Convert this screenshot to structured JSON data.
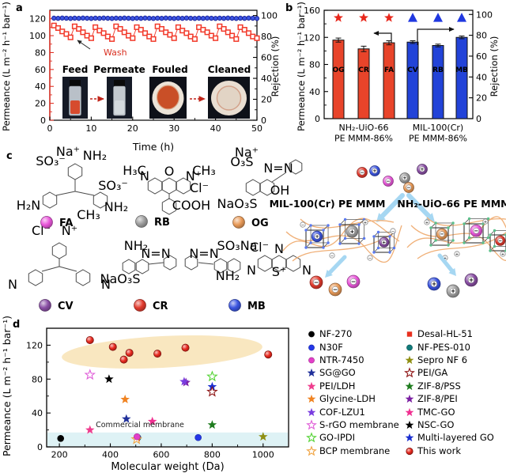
{
  "panels": {
    "a": {
      "label": "a",
      "ylabel": "Permeance (L m⁻² h⁻¹ bar⁻¹)",
      "y2label": "Rejection (%)",
      "xlabel": "Time (h)",
      "wash_label": "Wash",
      "photo_labels": [
        "Feed",
        "Permeate",
        "Fouled",
        "Cleaned"
      ]
    },
    "b": {
      "label": "b",
      "ylabel": "Permeance (L m⁻² h⁻¹ bar⁻¹)",
      "y2label": "Rejection (%)",
      "groups": [
        {
          "line1": "NH₂-UiO-66",
          "line2": "PE MMM-86%"
        },
        {
          "line1": "MIL-100(Cr)",
          "line2": "PE MMM-86%"
        }
      ]
    },
    "c": {
      "label": "c",
      "dyes": [
        {
          "id": "FA",
          "color": "#e957da",
          "charge": "−"
        },
        {
          "id": "RB",
          "color": "#9e9e9e",
          "charge": "+"
        },
        {
          "id": "OG",
          "color": "#e89a58",
          "charge": "−"
        },
        {
          "id": "CV",
          "color": "#8a4fa5",
          "charge": "+"
        },
        {
          "id": "CR",
          "color": "#e23b2e",
          "charge": "−"
        },
        {
          "id": "MB",
          "color": "#3b55e0",
          "charge": "+"
        }
      ],
      "molecules": [
        {
          "dye": "FA",
          "group_labels": [
            "Na⁺",
            "SO₃⁻",
            "NH₂",
            "SO₃⁻",
            "H₂N",
            "NH₂",
            "CH₃"
          ]
        },
        {
          "dye": "RB",
          "group_labels": [
            "H₃C",
            "N",
            "O",
            "N⁺",
            "CH₃",
            "Cl⁻",
            "COOH"
          ]
        },
        {
          "dye": "OG",
          "group_labels": [
            "Na⁺",
            "O₃S",
            "N=N",
            "OH",
            "NaO₃S"
          ]
        },
        {
          "dye": "CV",
          "group_labels": [
            "Cl⁻",
            "N⁺",
            "N",
            "N"
          ]
        },
        {
          "dye": "CR",
          "group_labels": [
            "NH₂",
            "N=N",
            "N=N",
            "NH₂",
            "NaO₃S",
            "SO₃Na"
          ]
        },
        {
          "dye": "MB",
          "group_labels": [
            "N",
            "S⁺",
            "N",
            "N",
            "Cl⁻"
          ]
        }
      ],
      "membrane_left_label": "MIL-100(Cr) PE MMM",
      "membrane_right_label": "NH₂-UiO-66 PE MMM"
    },
    "d": {
      "label": "d",
      "ylabel": "Permeance (L m⁻² h⁻¹ bar⁻¹)",
      "xlabel": "Molecular weight (Da)",
      "annotation": "Commercial membrane"
    }
  },
  "chart_data": [
    {
      "panel": "a",
      "type": "line",
      "xlabel": "Time (h)",
      "xlim": [
        0,
        50
      ],
      "xticks": [
        0,
        10,
        20,
        30,
        40,
        50
      ],
      "ylabel": "Permeance (L m⁻² h⁻¹ bar⁻¹)",
      "ylim": [
        0,
        130
      ],
      "yticks": [
        0,
        20,
        40,
        60,
        80,
        100,
        120
      ],
      "y2label": "Rejection (%)",
      "y2lim": [
        0,
        105
      ],
      "y2ticks": [
        0,
        20,
        40,
        60,
        80,
        100
      ],
      "annotation": "Wash",
      "series": [
        {
          "name": "Rejection",
          "axis": "y2",
          "marker": "circle",
          "color": "#2b3fd8",
          "x": [
            1,
            2,
            3,
            4,
            5,
            6,
            7,
            8,
            9,
            10,
            11,
            12,
            13,
            14,
            15,
            16,
            17,
            18,
            19,
            20,
            21,
            22,
            23,
            24,
            25,
            26,
            27,
            28,
            29,
            30,
            31,
            32,
            33,
            34,
            35,
            36,
            37,
            38,
            39,
            40,
            41,
            42,
            43,
            44,
            45,
            46,
            47,
            48,
            49,
            50
          ],
          "y": [
            97.5,
            97.3,
            97.6,
            97.4,
            97.2,
            97.5,
            97.3,
            97.6,
            97.4,
            97.2,
            97.5,
            97.3,
            97.6,
            97.4,
            97.2,
            97.5,
            97.3,
            97.6,
            97.4,
            97.2,
            97.5,
            97.3,
            97.6,
            97.4,
            97.2,
            97.5,
            97.3,
            97.6,
            97.4,
            97.2,
            97.5,
            97.3,
            97.6,
            97.4,
            97.2,
            97.5,
            97.3,
            97.6,
            97.4,
            97.2,
            97.5,
            97.3,
            97.6,
            97.4,
            97.2,
            97.5,
            97.3,
            97.6,
            97.4,
            97.2
          ]
        },
        {
          "name": "Permeance",
          "axis": "y",
          "marker": "square-open",
          "color": "#f2392a",
          "x": [
            1,
            2,
            3,
            4,
            5,
            6,
            7,
            8,
            9,
            10,
            11,
            12,
            13,
            14,
            15,
            16,
            17,
            18,
            19,
            20,
            21,
            22,
            23,
            24,
            25,
            26,
            27,
            28,
            29,
            30,
            31,
            32,
            33,
            34,
            35,
            36,
            37,
            38,
            39,
            40,
            41,
            42,
            43,
            44,
            45,
            46,
            47,
            48,
            49,
            50
          ],
          "y": [
            112,
            109,
            105,
            102,
            98,
            111,
            108,
            104,
            100,
            97,
            110,
            106,
            103,
            99,
            96,
            111,
            108,
            104,
            100,
            97,
            110,
            107,
            103,
            99,
            96,
            111,
            108,
            104,
            101,
            97,
            110,
            106,
            103,
            99,
            96,
            110,
            107,
            104,
            100,
            97,
            111,
            108,
            104,
            100,
            96,
            110,
            107,
            103,
            99,
            97
          ]
        }
      ]
    },
    {
      "panel": "b",
      "type": "bar",
      "categories": [
        "OG",
        "CR",
        "FA",
        "CV",
        "RB",
        "MB"
      ],
      "values": [
        116,
        103,
        112,
        113,
        108,
        120
      ],
      "errors": [
        3,
        4,
        3,
        2,
        2,
        2
      ],
      "bar_colors": [
        "#e8442a",
        "#e8442a",
        "#e8442a",
        "#2243d8",
        "#2243d8",
        "#2243d8"
      ],
      "rejection": {
        "values": [
          99,
          99,
          99,
          99,
          99,
          99
        ],
        "markers": [
          "star",
          "star",
          "star",
          "triangle",
          "triangle",
          "triangle"
        ],
        "colors": [
          "#e8271b",
          "#e8271b",
          "#e8271b",
          "#2038e0",
          "#2038e0",
          "#2038e0"
        ]
      },
      "ylabel": "Permeance (L m⁻² h⁻¹ bar⁻¹)",
      "ylim": [
        0,
        160
      ],
      "yticks": [
        0,
        40,
        80,
        120,
        160
      ],
      "y2label": "Rejection (%)",
      "y2lim": [
        0,
        100
      ],
      "y2ticks": [
        0,
        20,
        40,
        60,
        80,
        100
      ],
      "group_labels": [
        "NH₂-UiO-66 PE MMM-86%",
        "MIL-100(Cr) PE MMM-86%"
      ]
    },
    {
      "panel": "d",
      "type": "scatter",
      "xlabel": "Molecular weight (Da)",
      "xlim": [
        150,
        1100
      ],
      "xticks": [
        200,
        400,
        600,
        800,
        1000
      ],
      "ylabel": "Permeance (L m⁻² h⁻¹ bar⁻¹)",
      "ylim": [
        0,
        140
      ],
      "yticks": [
        0,
        40,
        80,
        120
      ],
      "annotation": "Commercial membrane",
      "commercial_band": {
        "ymax": 17,
        "color": "#def2f5"
      },
      "highlight_ellipse": {
        "color": "#f7e0ae"
      },
      "legend": {
        "columns": 2,
        "position": "right"
      },
      "series": [
        {
          "name": "NF-270",
          "marker": "circle",
          "color": "#000000",
          "points": [
            [
              205,
              10
            ]
          ]
        },
        {
          "name": "N30F",
          "marker": "circle",
          "color": "#2337e8",
          "points": [
            [
              745,
              11
            ]
          ]
        },
        {
          "name": "NTR-7450",
          "marker": "circle",
          "color": "#e33fc9",
          "points": [
            [
              505,
              12
            ]
          ]
        },
        {
          "name": "SG@GO",
          "marker": "star",
          "color": "#20309a",
          "points": [
            [
              463,
              33
            ]
          ]
        },
        {
          "name": "PEI/LDH",
          "marker": "star",
          "color": "#ef3d8e",
          "points": [
            [
              320,
              20
            ]
          ]
        },
        {
          "name": "Glycine-LDH",
          "marker": "star",
          "color": "#f08322",
          "points": [
            [
              458,
              56
            ]
          ]
        },
        {
          "name": "COF-LZU1",
          "marker": "star",
          "color": "#7a3de0",
          "points": [
            [
              690,
              77
            ]
          ]
        },
        {
          "name": "S-rGO membrane",
          "marker": "star-open",
          "color": "#e05fd8",
          "points": [
            [
              320,
              85
            ]
          ]
        },
        {
          "name": "GO-IPDI",
          "marker": "star-open",
          "color": "#55d335",
          "points": [
            [
              800,
              83
            ]
          ]
        },
        {
          "name": "BCP membrane",
          "marker": "star-open",
          "color": "#f0a443",
          "points": [
            [
              503,
              9
            ]
          ]
        },
        {
          "name": "Desal-HL-51",
          "marker": "square",
          "color": "#e8301f",
          "points": [
            [
              505,
              10
            ]
          ]
        },
        {
          "name": "NF-PES-010",
          "marker": "circle",
          "color": "#117a7a",
          "points": [
            [
              508,
              11
            ]
          ]
        },
        {
          "name": "Sepro NF 6",
          "marker": "star",
          "color": "#8f8f12",
          "points": [
            [
              1000,
              12
            ]
          ]
        },
        {
          "name": "PEI/GA",
          "marker": "star-open",
          "color": "#8e1616",
          "points": [
            [
              800,
              65
            ]
          ]
        },
        {
          "name": "ZIF-8/PSS",
          "marker": "star",
          "color": "#1f7c1f",
          "points": [
            [
              800,
              26
            ]
          ]
        },
        {
          "name": "ZIF-8/PEI",
          "marker": "star",
          "color": "#7b1fa2",
          "points": [
            [
              697,
              76
            ]
          ]
        },
        {
          "name": "TMC-GO",
          "marker": "star",
          "color": "#f03091",
          "points": [
            [
              565,
              30
            ]
          ]
        },
        {
          "name": "NSC-GO",
          "marker": "star",
          "color": "#000000",
          "points": [
            [
              395,
              80
            ]
          ]
        },
        {
          "name": "Multi-layered GO",
          "marker": "star",
          "color": "#1a2fd0",
          "points": [
            [
              800,
              71
            ]
          ]
        },
        {
          "name": "This work",
          "marker": "sphere",
          "color": "#e8281e",
          "points": [
            [
              320,
              126
            ],
            [
              410,
              118
            ],
            [
              453,
              103
            ],
            [
              475,
              111
            ],
            [
              585,
              110
            ],
            [
              695,
              117
            ],
            [
              1020,
              109
            ]
          ]
        }
      ]
    }
  ]
}
